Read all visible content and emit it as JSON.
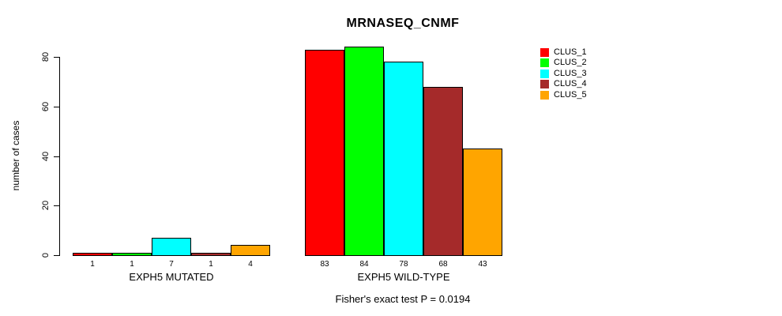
{
  "title": "MRNASEQ_CNMF",
  "ylabel": "number of cases",
  "footer": "Fisher's exact test P = 0.0194",
  "chart_data": {
    "type": "bar",
    "title": "MRNASEQ_CNMF",
    "ylabel": "number of cases",
    "xlabel": "",
    "ylim": [
      0,
      84
    ],
    "yticks": [
      0,
      20,
      40,
      60,
      80
    ],
    "grid": false,
    "legend_position": "top-right",
    "categories": [
      "EXPH5 MUTATED",
      "EXPH5 WILD-TYPE"
    ],
    "series": [
      {
        "name": "CLUS_1",
        "color": "#FF0000",
        "values": [
          1,
          83
        ]
      },
      {
        "name": "CLUS_2",
        "color": "#00FF00",
        "values": [
          1,
          84
        ]
      },
      {
        "name": "CLUS_3",
        "color": "#00FFFF",
        "values": [
          7,
          78
        ]
      },
      {
        "name": "CLUS_4",
        "color": "#A52A2A",
        "values": [
          1,
          68
        ]
      },
      {
        "name": "CLUS_5",
        "color": "#FFA500",
        "values": [
          4,
          43
        ]
      }
    ],
    "groups": [
      {
        "label": "EXPH5 MUTATED",
        "values": [
          1,
          1,
          7,
          1,
          4
        ]
      },
      {
        "label": "EXPH5 WILD-TYPE",
        "values": [
          83,
          84,
          78,
          68,
          43
        ]
      }
    ],
    "bar_value_labels": [
      [
        "1",
        "1",
        "7",
        "1",
        "4"
      ],
      [
        "83",
        "84",
        "78",
        "68",
        "43"
      ]
    ],
    "annotation": "Fisher's exact test P = 0.0194"
  },
  "legend": {
    "items": [
      {
        "label": "CLUS_1",
        "color": "#FF0000"
      },
      {
        "label": "CLUS_2",
        "color": "#00FF00"
      },
      {
        "label": "CLUS_3",
        "color": "#00FFFF"
      },
      {
        "label": "CLUS_4",
        "color": "#A52A2A"
      },
      {
        "label": "CLUS_5",
        "color": "#FFA500"
      }
    ]
  }
}
